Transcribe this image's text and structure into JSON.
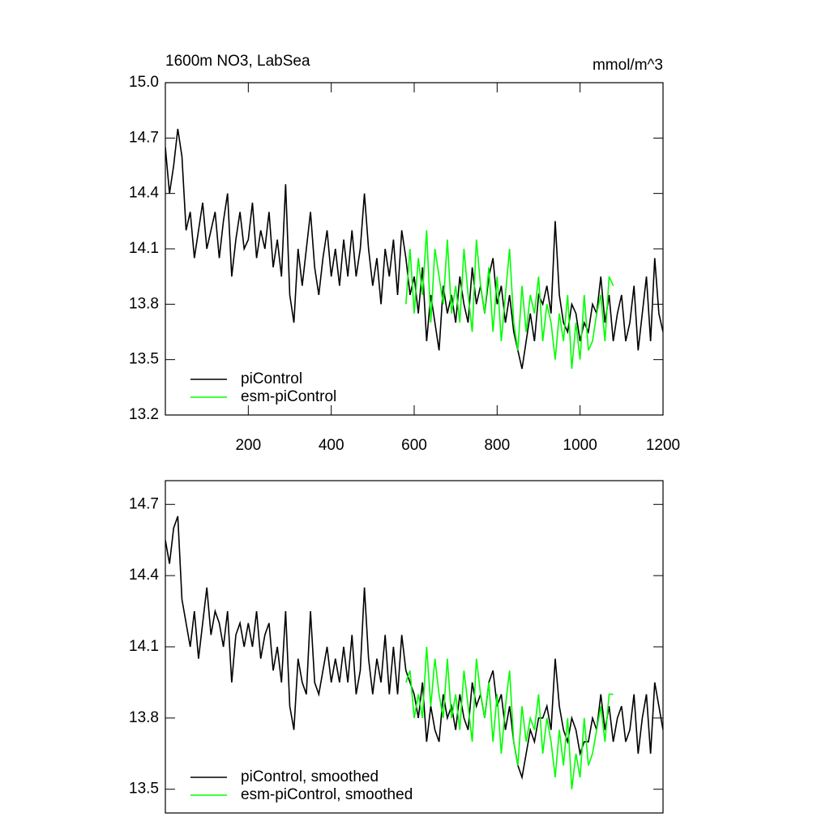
{
  "chart_data": [
    {
      "type": "line",
      "title": "1600m NO3, LabSea",
      "units": "mmol/m^3",
      "xlim": [
        0,
        1200
      ],
      "xticks": [
        200,
        400,
        600,
        800,
        1000,
        1200
      ],
      "ylim": [
        13.2,
        15.0
      ],
      "yticks": [
        13.2,
        13.5,
        13.8,
        14.1,
        14.4,
        14.7,
        {
          "value": 15.0,
          "label": "15.0"
        }
      ],
      "legend": "bottom-left",
      "series": [
        {
          "name": "piControl",
          "color": "#000000",
          "x": [
            0,
            10,
            20,
            30,
            40,
            50,
            60,
            70,
            80,
            90,
            100,
            110,
            120,
            130,
            140,
            150,
            160,
            170,
            180,
            190,
            200,
            210,
            220,
            230,
            240,
            250,
            260,
            270,
            280,
            290,
            300,
            310,
            320,
            330,
            340,
            350,
            360,
            370,
            380,
            390,
            400,
            410,
            420,
            430,
            440,
            450,
            460,
            470,
            480,
            490,
            500,
            510,
            520,
            530,
            540,
            550,
            560,
            570,
            580,
            590,
            600,
            610,
            620,
            630,
            640,
            650,
            660,
            670,
            680,
            690,
            700,
            710,
            720,
            730,
            740,
            750,
            760,
            770,
            780,
            790,
            800,
            810,
            820,
            830,
            840,
            850,
            860,
            870,
            880,
            890,
            900,
            910,
            920,
            930,
            940,
            950,
            960,
            970,
            980,
            990,
            1000,
            1010,
            1020,
            1030,
            1040,
            1050,
            1060,
            1070,
            1080,
            1090,
            1100,
            1110,
            1120,
            1130,
            1140,
            1150,
            1160,
            1170,
            1180,
            1190,
            1200
          ],
          "values": [
            14.65,
            14.4,
            14.55,
            14.75,
            14.6,
            14.2,
            14.3,
            14.05,
            14.2,
            14.35,
            14.1,
            14.2,
            14.3,
            14.05,
            14.25,
            14.4,
            13.95,
            14.15,
            14.3,
            14.1,
            14.15,
            14.35,
            14.05,
            14.2,
            14.1,
            14.3,
            14.0,
            14.15,
            13.95,
            14.45,
            13.85,
            13.7,
            14.1,
            13.9,
            14.1,
            14.3,
            14.0,
            13.85,
            14.05,
            14.2,
            13.95,
            14.1,
            13.9,
            14.15,
            13.95,
            14.2,
            13.95,
            14.1,
            14.4,
            14.1,
            13.9,
            14.05,
            13.8,
            14.1,
            13.95,
            14.15,
            13.85,
            14.2,
            14.05,
            13.85,
            13.95,
            13.75,
            14.0,
            13.6,
            13.85,
            13.7,
            13.55,
            13.9,
            13.75,
            13.85,
            13.7,
            13.95,
            13.8,
            13.7,
            14.0,
            13.8,
            13.9,
            13.75,
            13.95,
            14.05,
            13.8,
            13.9,
            13.7,
            13.85,
            13.65,
            13.55,
            13.45,
            13.6,
            13.75,
            13.6,
            13.85,
            13.8,
            13.9,
            13.75,
            14.25,
            13.85,
            13.7,
            13.65,
            13.8,
            13.75,
            13.6,
            13.7,
            13.65,
            13.8,
            13.75,
            13.95,
            13.7,
            13.85,
            13.6,
            13.75,
            13.85,
            13.6,
            13.7,
            13.9,
            13.55,
            13.75,
            13.95,
            13.6,
            14.05,
            13.75,
            13.65
          ]
        },
        {
          "name": "esm-piControl",
          "color": "#00ff00",
          "x": [
            580,
            590,
            600,
            610,
            620,
            630,
            640,
            650,
            660,
            670,
            680,
            690,
            700,
            710,
            720,
            730,
            740,
            750,
            760,
            770,
            780,
            790,
            800,
            810,
            820,
            830,
            840,
            850,
            860,
            870,
            880,
            890,
            900,
            910,
            920,
            930,
            940,
            950,
            960,
            970,
            980,
            990,
            1000,
            1010,
            1020,
            1030,
            1040,
            1050,
            1060,
            1070,
            1080
          ],
          "values": [
            13.8,
            14.1,
            13.75,
            14.05,
            13.85,
            14.2,
            13.7,
            14.1,
            13.95,
            13.8,
            14.15,
            13.75,
            13.9,
            13.7,
            14.1,
            13.85,
            13.65,
            14.15,
            13.9,
            13.75,
            14.0,
            13.65,
            13.95,
            13.6,
            13.85,
            14.1,
            13.7,
            13.55,
            13.9,
            13.65,
            13.85,
            13.75,
            13.95,
            13.6,
            13.8,
            13.7,
            13.5,
            13.75,
            13.6,
            13.85,
            13.45,
            13.7,
            13.5,
            13.85,
            13.55,
            13.6,
            13.75,
            13.85,
            13.6,
            13.95,
            13.9
          ]
        }
      ]
    },
    {
      "type": "line",
      "xlim": [
        0,
        1200
      ],
      "ylim": [
        13.4,
        14.8
      ],
      "yticks": [
        13.5,
        13.8,
        14.1,
        14.4,
        14.7
      ],
      "legend": "bottom-left",
      "series": [
        {
          "name": "piControl, smoothed",
          "color": "#000000",
          "x": [
            0,
            10,
            20,
            30,
            40,
            50,
            60,
            70,
            80,
            90,
            100,
            110,
            120,
            130,
            140,
            150,
            160,
            170,
            180,
            190,
            200,
            210,
            220,
            230,
            240,
            250,
            260,
            270,
            280,
            290,
            300,
            310,
            320,
            330,
            340,
            350,
            360,
            370,
            380,
            390,
            400,
            410,
            420,
            430,
            440,
            450,
            460,
            470,
            480,
            490,
            500,
            510,
            520,
            530,
            540,
            550,
            560,
            570,
            580,
            590,
            600,
            610,
            620,
            630,
            640,
            650,
            660,
            670,
            680,
            690,
            700,
            710,
            720,
            730,
            740,
            750,
            760,
            770,
            780,
            790,
            800,
            810,
            820,
            830,
            840,
            850,
            860,
            870,
            880,
            890,
            900,
            910,
            920,
            930,
            940,
            950,
            960,
            970,
            980,
            990,
            1000,
            1010,
            1020,
            1030,
            1040,
            1050,
            1060,
            1070,
            1080,
            1090,
            1100,
            1110,
            1120,
            1130,
            1140,
            1150,
            1160,
            1170,
            1180,
            1190,
            1200
          ],
          "values": [
            14.55,
            14.45,
            14.6,
            14.65,
            14.3,
            14.2,
            14.1,
            14.25,
            14.05,
            14.2,
            14.35,
            14.15,
            14.25,
            14.2,
            14.1,
            14.25,
            13.95,
            14.15,
            14.2,
            14.1,
            14.2,
            14.1,
            14.25,
            14.05,
            14.15,
            14.2,
            14.0,
            14.1,
            13.95,
            14.25,
            13.85,
            13.75,
            14.05,
            13.95,
            13.9,
            14.25,
            13.95,
            13.9,
            14.0,
            14.1,
            13.95,
            14.05,
            13.95,
            14.1,
            13.95,
            14.15,
            13.9,
            14.0,
            14.35,
            14.05,
            13.9,
            14.05,
            13.95,
            14.15,
            13.9,
            14.1,
            13.9,
            14.15,
            14.0,
            13.95,
            13.9,
            13.8,
            13.95,
            13.7,
            13.85,
            13.75,
            13.7,
            13.9,
            13.8,
            13.85,
            13.75,
            13.9,
            13.8,
            13.75,
            13.95,
            13.85,
            13.9,
            13.8,
            13.95,
            14.0,
            13.85,
            13.9,
            13.75,
            13.85,
            13.7,
            13.6,
            13.55,
            13.65,
            13.75,
            13.7,
            13.8,
            13.8,
            13.85,
            13.75,
            14.05,
            13.85,
            13.75,
            13.7,
            13.8,
            13.75,
            13.65,
            13.7,
            13.7,
            13.8,
            13.75,
            13.9,
            13.75,
            13.85,
            13.7,
            13.8,
            13.85,
            13.7,
            13.75,
            13.9,
            13.65,
            13.8,
            13.9,
            13.65,
            13.95,
            13.85,
            13.75
          ]
        },
        {
          "name": "esm-piControl, smoothed",
          "color": "#00ff00",
          "x": [
            580,
            590,
            600,
            610,
            620,
            630,
            640,
            650,
            660,
            670,
            680,
            690,
            700,
            710,
            720,
            730,
            740,
            750,
            760,
            770,
            780,
            790,
            800,
            810,
            820,
            830,
            840,
            850,
            860,
            870,
            880,
            890,
            900,
            910,
            920,
            930,
            940,
            950,
            960,
            970,
            980,
            990,
            1000,
            1010,
            1020,
            1030,
            1040,
            1050,
            1060,
            1070,
            1080
          ],
          "values": [
            13.95,
            14.0,
            13.8,
            13.9,
            13.8,
            14.1,
            13.85,
            14.05,
            13.9,
            13.8,
            14.05,
            13.8,
            13.9,
            13.75,
            14.0,
            13.85,
            13.7,
            14.05,
            13.9,
            13.8,
            13.95,
            13.7,
            13.9,
            13.65,
            13.85,
            14.0,
            13.7,
            13.6,
            13.85,
            13.7,
            13.8,
            13.75,
            13.9,
            13.65,
            13.8,
            13.7,
            13.55,
            13.75,
            13.6,
            13.8,
            13.5,
            13.65,
            13.55,
            13.8,
            13.6,
            13.65,
            13.75,
            13.85,
            13.7,
            13.9,
            13.9
          ]
        }
      ]
    }
  ]
}
